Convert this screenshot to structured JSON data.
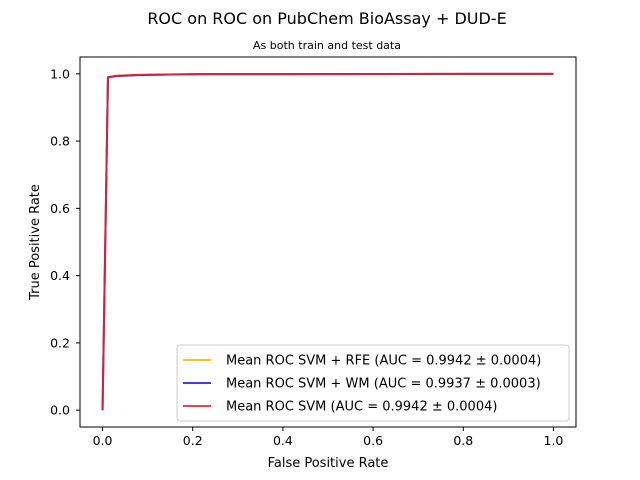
{
  "chart_data": {
    "type": "line",
    "title": "ROC on ROC on PubChem BioAssay + DUD-E",
    "subtitle": "As both train and test data",
    "xlabel": "False Positive Rate",
    "ylabel": "True Positive Rate",
    "xlim": [
      -0.05,
      1.05
    ],
    "ylim": [
      -0.05,
      1.05
    ],
    "xticks": [
      "0.0",
      "0.2",
      "0.4",
      "0.6",
      "0.8",
      "1.0"
    ],
    "yticks": [
      "0.0",
      "0.2",
      "0.4",
      "0.6",
      "0.8",
      "1.0"
    ],
    "xtick_values": [
      0.0,
      0.2,
      0.4,
      0.6,
      0.8,
      1.0
    ],
    "ytick_values": [
      0.0,
      0.2,
      0.4,
      0.6,
      0.8,
      1.0
    ],
    "grid": false,
    "legend_position": "lower-right",
    "series": [
      {
        "name": "Mean ROC SVM + RFE (AUC = 0.9942 ± 0.0004)",
        "color": "#ffb300",
        "x": [
          0.0,
          0.012,
          0.03,
          0.08,
          0.15,
          0.22,
          0.4,
          0.6,
          0.8,
          1.0
        ],
        "y": [
          0.0,
          0.99,
          0.994,
          0.997,
          0.998,
          0.999,
          0.999,
          0.9995,
          0.9998,
          1.0
        ]
      },
      {
        "name": "Mean ROC SVM + WM (AUC = 0.9937 ± 0.0003)",
        "color": "#1f1fdf",
        "x": [
          0.0,
          0.012,
          0.03,
          0.08,
          0.15,
          0.22,
          0.4,
          0.6,
          0.8,
          1.0
        ],
        "y": [
          0.0,
          0.989,
          0.993,
          0.996,
          0.998,
          0.999,
          0.999,
          0.9995,
          0.9998,
          1.0
        ]
      },
      {
        "name": "Mean ROC SVM (AUC = 0.9942 ± 0.0004)",
        "color": "#e8202a",
        "x": [
          0.0,
          0.012,
          0.03,
          0.08,
          0.15,
          0.22,
          0.4,
          0.6,
          0.8,
          1.0
        ],
        "y": [
          0.0,
          0.99,
          0.994,
          0.997,
          0.998,
          0.999,
          0.999,
          0.9995,
          0.9998,
          1.0
        ]
      }
    ]
  }
}
